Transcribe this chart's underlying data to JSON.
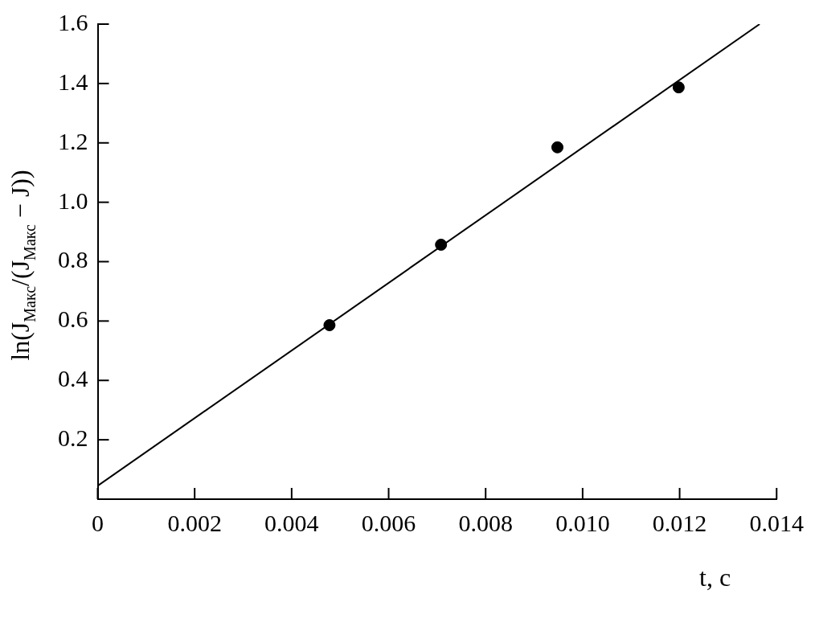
{
  "chart_data": {
    "type": "scatter",
    "xlabel": "t, с",
    "ylabel": "ln(J$_{Макс}$/(J$_{Макс}$ − J))",
    "xlim": [
      0,
      0.014
    ],
    "ylim": [
      0,
      1.6
    ],
    "xticks": [
      {
        "value": 0,
        "label": "0"
      },
      0.002,
      0.004,
      0.006,
      0.008,
      {
        "value": 0.01,
        "label": "0.010"
      },
      0.012,
      0.014
    ],
    "yticks": [
      0.2,
      0.4,
      0.6,
      0.8,
      {
        "value": 1,
        "label": "1.0"
      },
      1.2,
      1.4,
      1.6
    ],
    "grid": false,
    "legend": false,
    "marker": "circle",
    "series": [
      {
        "color": "#000000",
        "x": [
          0.00478,
          0.00708,
          0.00948,
          0.01198
        ],
        "values": [
          0.586,
          0.857,
          1.185,
          1.387
        ]
      },
      {
        "type": "line",
        "color": "#000000",
        "marker": "none",
        "line_style": "solid",
        "x": [
          0,
          0.01365
        ],
        "values": [
          0.045,
          1.6
        ]
      }
    ]
  }
}
